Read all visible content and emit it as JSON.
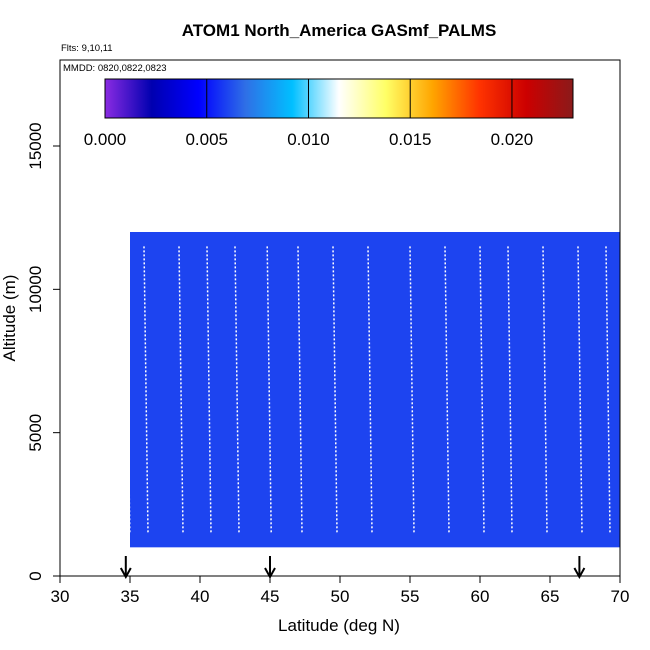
{
  "chart_data": {
    "type": "heatmap",
    "title": "ATOM1 North_America GASmf_PALMS",
    "subtitle_flights": "Flts: 9,10,11",
    "subtitle_dates": "MMDD: 0820,0822,0823",
    "xlabel": "Latitude (deg N)",
    "ylabel": "Altitude (m)",
    "xlim": [
      30,
      70
    ],
    "ylim": [
      0,
      18000
    ],
    "xticks": [
      "30",
      "35",
      "40",
      "45",
      "50",
      "55",
      "60",
      "65",
      "70"
    ],
    "yticks": [
      "0",
      "5000",
      "10000",
      "15000"
    ],
    "colorbar": {
      "range": [
        0,
        0.023
      ],
      "ticks": [
        "0.000",
        "0.005",
        "0.010",
        "0.015",
        "0.020"
      ],
      "tick_values": [
        0,
        0.005,
        0.01,
        0.015,
        0.02
      ],
      "colors": [
        "#8a2be2",
        "#0000b0",
        "#0000ff",
        "#2f6fe6",
        "#00bfff",
        "#ffffff",
        "#ffff66",
        "#ffa500",
        "#ff3300",
        "#cc0000",
        "#8b1a1a"
      ]
    },
    "arrows_latitude": [
      34.7,
      45.0,
      67.1
    ],
    "profile_markers_latitude": [
      34.7,
      36.0,
      38.5,
      40.5,
      42.5,
      44.8,
      47.0,
      49.5,
      52.0,
      55.0,
      57.5,
      60.0,
      62.0,
      64.5,
      67.0,
      69.0
    ],
    "cells": [
      {
        "lat_range": [
          35,
          70
        ],
        "alt_range": [
          1000,
          12000
        ],
        "value": 0.006
      }
    ]
  }
}
